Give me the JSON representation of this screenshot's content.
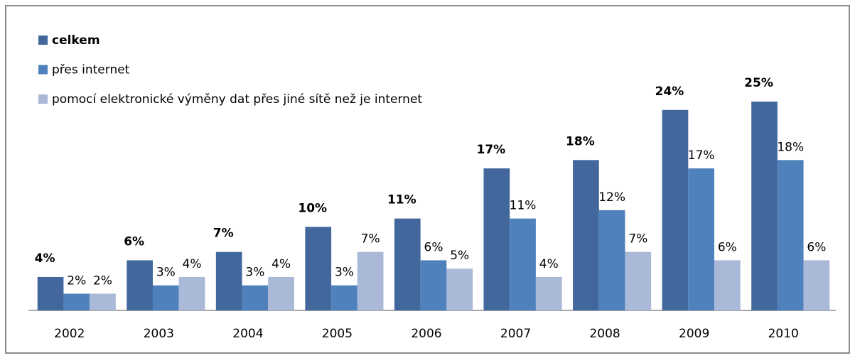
{
  "chart_data": {
    "type": "bar",
    "categories": [
      "2002",
      "2003",
      "2004",
      "2005",
      "2006",
      "2007",
      "2008",
      "2009",
      "2010"
    ],
    "series": [
      {
        "name": "celkem",
        "color": "#41679c",
        "values": [
          4,
          6,
          7,
          10,
          11,
          17,
          18,
          24,
          25
        ],
        "value_labels": [
          "4%",
          "6%",
          "7%",
          "10%",
          "11%",
          "17%",
          "18%",
          "24%",
          "25%"
        ]
      },
      {
        "name": "přes internet",
        "color": "#4f81bd",
        "values": [
          2,
          3,
          3,
          3,
          6,
          11,
          12,
          17,
          18
        ],
        "value_labels": [
          "2%",
          "3%",
          "3%",
          "3%",
          "6%",
          "11%",
          "12%",
          "17%",
          "18%"
        ]
      },
      {
        "name": "pomocí elektronické výměny dat přes jiné sítě než je internet",
        "color": "#aab9d7",
        "values": [
          2,
          4,
          4,
          7,
          5,
          4,
          7,
          6,
          6
        ],
        "value_labels": [
          "2%",
          "4%",
          "4%",
          "7%",
          "5%",
          "4%",
          "7%",
          "6%",
          "6%"
        ]
      }
    ],
    "legend": "top-left"
  }
}
